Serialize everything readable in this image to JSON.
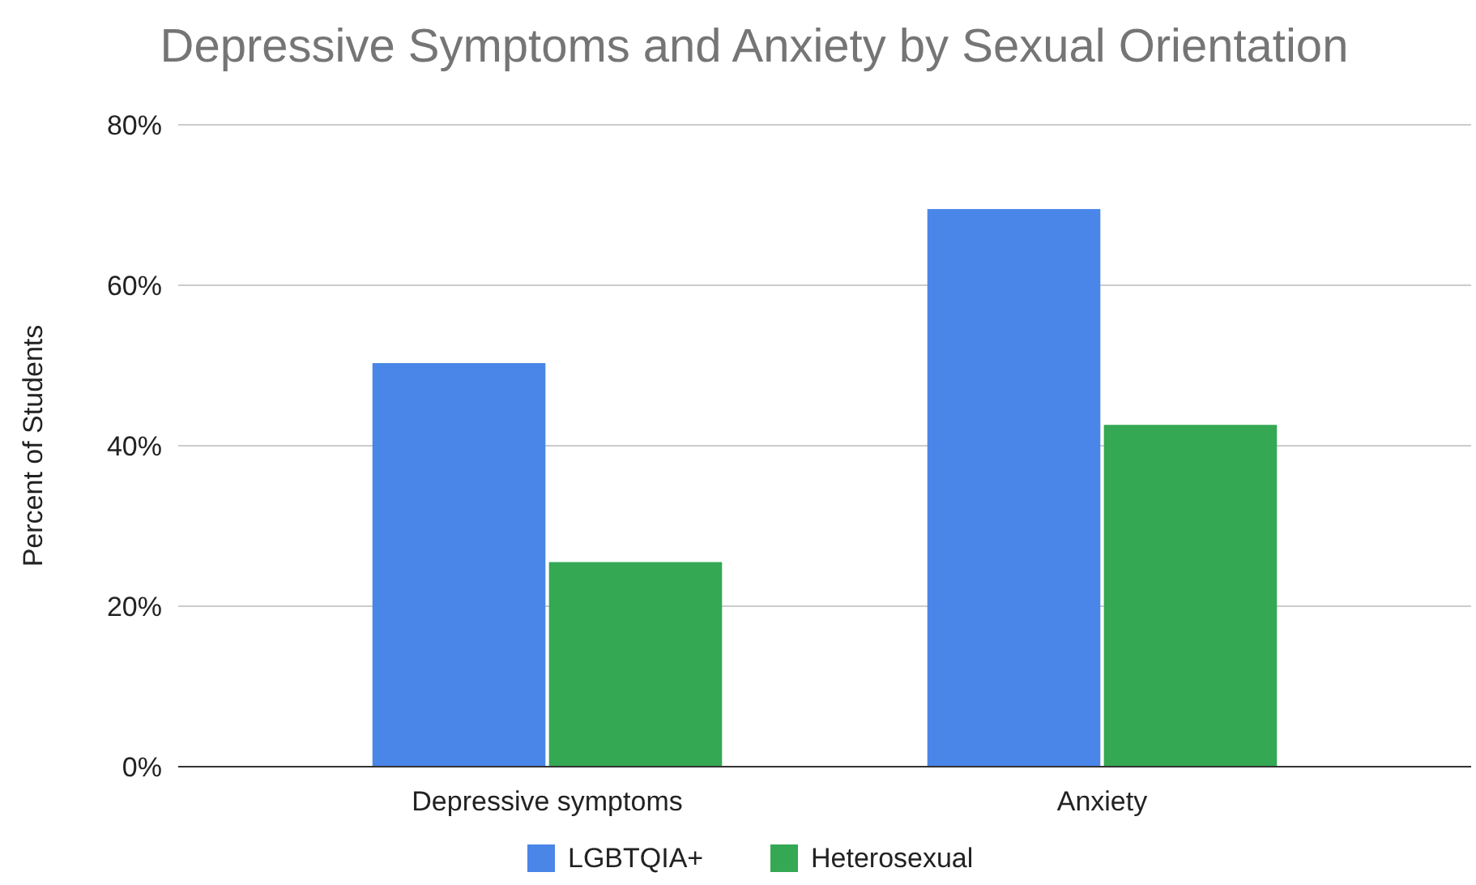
{
  "chart_data": {
    "type": "bar",
    "title": "Depressive Symptoms and Anxiety by Sexual Orientation",
    "ylabel": "Percent of Students",
    "categories": [
      "Depressive symptoms",
      "Anxiety"
    ],
    "series": [
      {
        "name": "LGBTQIA+",
        "color": "#4a86e8",
        "values": [
          50.3,
          69.5
        ]
      },
      {
        "name": "Heterosexual",
        "color": "#34a853",
        "values": [
          25.5,
          42.6
        ]
      }
    ],
    "ylim": [
      0,
      80
    ],
    "yticks": [
      {
        "value": 0,
        "label": "0%"
      },
      {
        "value": 20,
        "label": "20%"
      },
      {
        "value": 40,
        "label": "40%"
      },
      {
        "value": 60,
        "label": "60%"
      },
      {
        "value": 80,
        "label": "80%"
      }
    ],
    "grid": "y",
    "legend": "bottom"
  }
}
